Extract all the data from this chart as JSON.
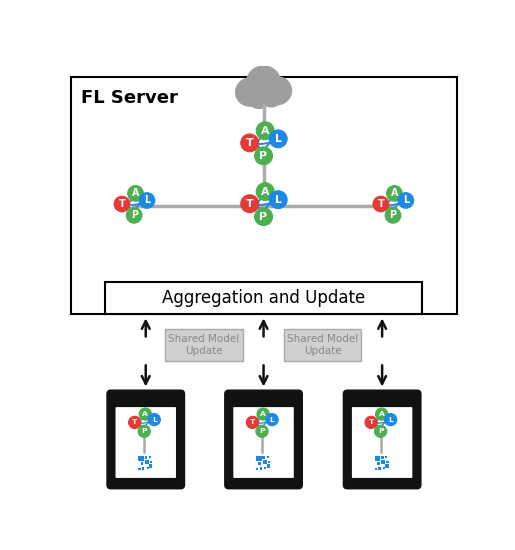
{
  "title": "FL Server",
  "aggregation_label": "Aggregation and Update",
  "shared_model_label": "Shared Model\nUpdate",
  "node_colors": {
    "A": "#4caf50",
    "T": "#e53935",
    "P": "#4caf50",
    "L": "#1e88e5"
  },
  "cloud_color": "#9e9e9e",
  "green_circle_color": "#4caf50",
  "line_color": "#aaaaaa",
  "arrow_color": "#111111",
  "phone_color": "#111111",
  "data_color": "#1e88e5",
  "shared_box_color": "#d0d0d0",
  "arc_color": "#1e88e5"
}
